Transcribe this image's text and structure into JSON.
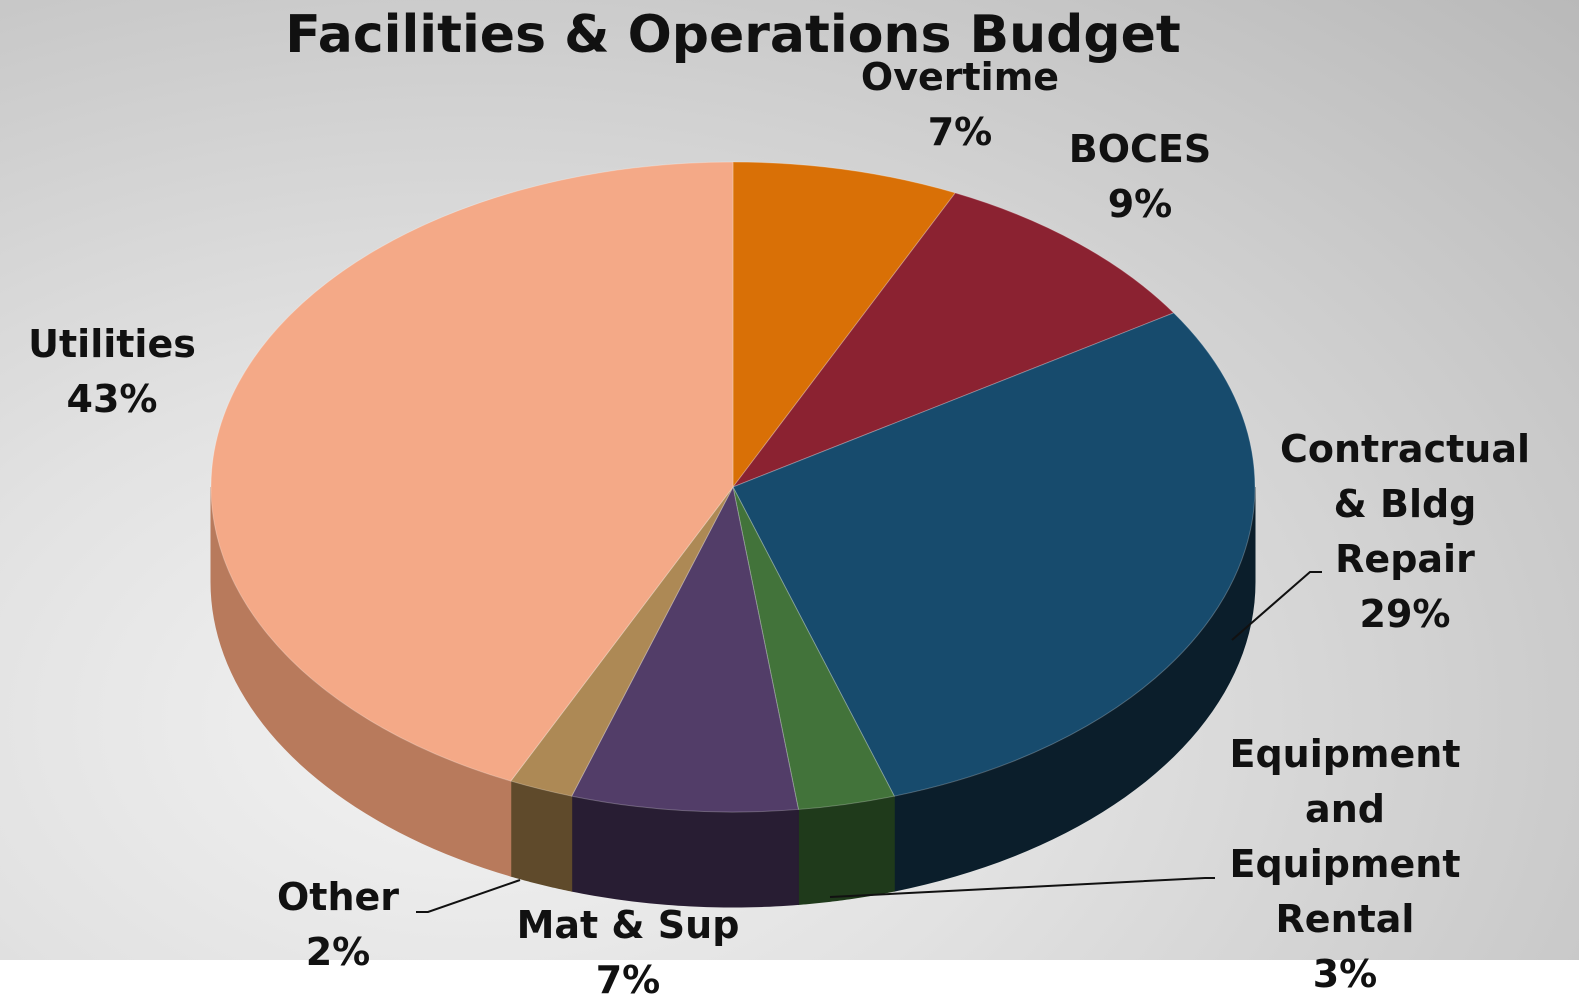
{
  "chart_data": {
    "type": "pie",
    "title": "Facilities & Operations Budget",
    "slices": [
      {
        "name": "Overtime",
        "label_lines": [
          "Overtime"
        ],
        "value": 7,
        "value_label": "7%",
        "color": "#d97006",
        "side_color": "#8a4604"
      },
      {
        "name": "BOCES",
        "label_lines": [
          "BOCES"
        ],
        "value": 9,
        "value_label": "9%",
        "color": "#8b2231",
        "side_color": "#551520"
      },
      {
        "name": "Contractual & Bldg Repair",
        "label_lines": [
          "Contractual",
          "& Bldg",
          "Repair"
        ],
        "value": 29,
        "value_label": "29%",
        "color": "#174b6d",
        "side_color": "#0b1e2b"
      },
      {
        "name": "Equipment and Equipment Rental",
        "label_lines": [
          "Equipment",
          "and",
          "Equipment",
          "Rental"
        ],
        "value": 3,
        "value_label": "3%",
        "color": "#42733a",
        "side_color": "#1f3a1b"
      },
      {
        "name": "Mat & Sup",
        "label_lines": [
          "Mat & Sup"
        ],
        "value": 7,
        "value_label": "7%",
        "color": "#523d68",
        "side_color": "#281d33"
      },
      {
        "name": "Other",
        "label_lines": [
          "Other"
        ],
        "value": 2,
        "value_label": "2%",
        "color": "#ad8955",
        "side_color": "#5f4a2b"
      },
      {
        "name": "Utilities",
        "label_lines": [
          "Utilities"
        ],
        "value": 43,
        "value_label": "43%",
        "color": "#f4a987",
        "side_color": "#b87a5c"
      }
    ],
    "grid": false,
    "legend": "none (data labels on slices)"
  }
}
